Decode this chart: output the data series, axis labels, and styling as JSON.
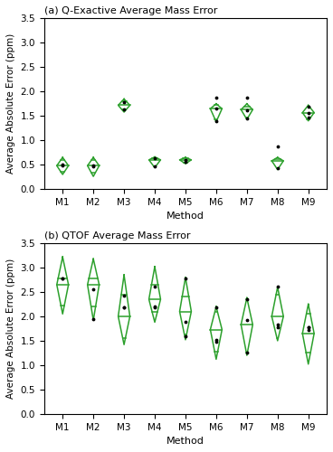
{
  "panel_a_title": "(a) Q-Exactive Average Mass Error",
  "panel_b_title": "(b) QTOF Average Mass Error",
  "xlabel": "Method",
  "ylabel": "Average Absolute Error (ppm)",
  "methods": [
    "M1",
    "M2",
    "M3",
    "M4",
    "M5",
    "M6",
    "M7",
    "M8",
    "M9"
  ],
  "ylim": [
    0,
    3.5
  ],
  "yticks": [
    0,
    0.5,
    1.0,
    1.5,
    2.0,
    2.5,
    3.0,
    3.5
  ],
  "diamond_color": "#2ca02c",
  "median_color": "#2ca02c",
  "point_color": "#000000",
  "panel_a": {
    "medians": [
      0.48,
      0.48,
      1.72,
      0.6,
      0.6,
      1.65,
      1.63,
      0.58,
      1.57
    ],
    "q1": [
      0.36,
      0.34,
      1.63,
      0.47,
      0.54,
      1.44,
      1.46,
      0.43,
      1.44
    ],
    "q3": [
      0.6,
      0.6,
      1.8,
      0.63,
      0.63,
      1.72,
      1.7,
      0.62,
      1.7
    ],
    "min": [
      0.3,
      0.26,
      1.58,
      0.44,
      0.52,
      1.38,
      1.43,
      0.4,
      1.4
    ],
    "max": [
      0.65,
      0.65,
      1.85,
      0.66,
      0.65,
      1.75,
      1.75,
      0.65,
      1.72
    ],
    "points": [
      [
        0.48,
        0.5
      ],
      [
        0.46,
        0.49
      ],
      [
        1.79,
        1.63
      ],
      [
        0.64,
        0.47
      ],
      [
        0.56,
        0.59
      ],
      [
        1.4,
        1.65,
        1.88
      ],
      [
        1.62,
        1.88,
        1.45
      ],
      [
        0.88,
        0.43
      ],
      [
        1.46,
        1.57,
        1.7
      ]
    ]
  },
  "panel_b": {
    "medians": [
      2.65,
      2.65,
      2.0,
      2.35,
      2.1,
      1.73,
      1.83,
      2.0,
      1.65
    ],
    "q1": [
      2.22,
      2.2,
      1.55,
      2.1,
      1.62,
      1.28,
      1.25,
      1.55,
      1.25
    ],
    "q3": [
      2.78,
      2.78,
      2.45,
      2.65,
      2.4,
      2.1,
      2.35,
      2.45,
      2.05
    ],
    "min": [
      2.05,
      1.92,
      1.42,
      1.88,
      1.52,
      1.12,
      1.2,
      1.5,
      1.02
    ],
    "max": [
      3.22,
      3.18,
      2.85,
      3.02,
      2.8,
      2.2,
      2.38,
      2.6,
      2.25
    ],
    "points": [
      [
        2.78,
        2.78
      ],
      [
        2.55,
        1.95
      ],
      [
        2.18,
        2.18,
        2.42
      ],
      [
        2.62,
        2.2,
        2.18
      ],
      [
        2.78,
        1.88,
        1.6
      ],
      [
        2.18,
        1.48,
        1.52
      ],
      [
        2.35,
        1.93,
        1.25
      ],
      [
        2.62,
        1.78,
        1.83
      ],
      [
        1.78,
        1.73,
        1.78
      ]
    ]
  }
}
